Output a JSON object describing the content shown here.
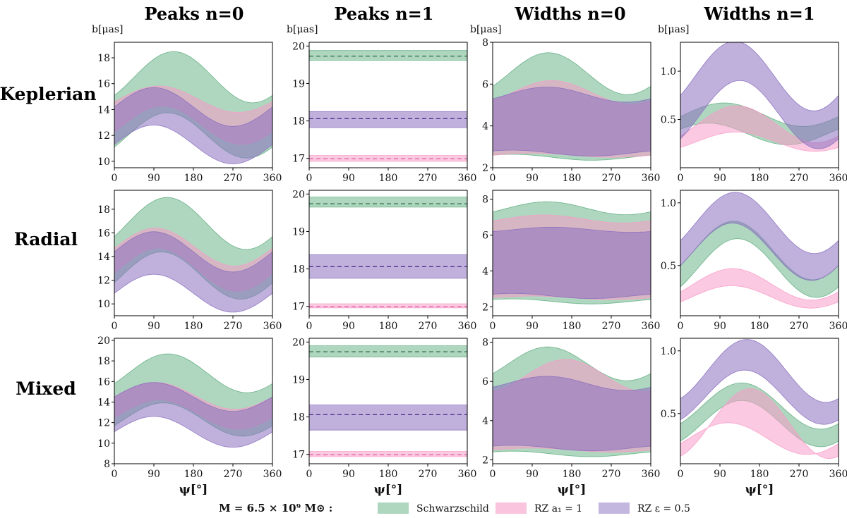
{
  "figure": {
    "column_titles": [
      "Peaks n=0",
      "Peaks n=1",
      "Widths n=0",
      "Widths n=1"
    ],
    "row_labels": [
      "Keplerian",
      "Radial",
      "Mixed"
    ],
    "unit_label": "b[μas]",
    "x_label": "ψ[°]",
    "x_ticks": [
      "0",
      "90",
      "180",
      "270",
      "360"
    ],
    "legend": {
      "mass_label": "M = 6.5 × 10⁹ M⊙ :",
      "entries": [
        {
          "label": "Schwarzschild",
          "color": "#5fae7f"
        },
        {
          "label": "RZ a₁ = 1",
          "color": "#f79cc8"
        },
        {
          "label": "RZ ε = 0.5",
          "color": "#8a6fbf"
        }
      ]
    }
  },
  "chart_data": [
    {
      "type": "area",
      "title": "Peaks n=0",
      "row": "Keplerian",
      "xlabel": "",
      "ylabel": "b[μas]",
      "xlim": [
        0,
        360
      ],
      "ylim": [
        9.5,
        19.2
      ],
      "yticks": [
        10,
        12,
        14,
        16,
        18
      ],
      "series": [
        {
          "name": "Schwarzschild",
          "color": "#5fae7f",
          "lower": {
            "a": 12.0,
            "b": 1.5,
            "c": -0.9
          },
          "upper": {
            "a": 16.5,
            "b": 1.4,
            "c": -1.4
          }
        },
        {
          "name": "RZ a1 = 1",
          "color": "#f79cc8",
          "lower": {
            "a": 12.8,
            "b": 1.4,
            "c": -0.5
          },
          "upper": {
            "a": 14.8,
            "b": 1.0,
            "c": -0.2
          }
        },
        {
          "name": "RZ eps = 0.5",
          "color": "#8a6fbf",
          "lower": {
            "a": 11.3,
            "b": 1.5,
            "c": 0.0
          },
          "upper": {
            "a": 14.2,
            "b": 1.5,
            "c": 0.0
          }
        }
      ]
    },
    {
      "type": "area",
      "title": "Peaks n=1",
      "row": "Keplerian",
      "xlabel": "",
      "ylabel": "b[μas]",
      "xlim": [
        0,
        360
      ],
      "ylim": [
        16.75,
        20.1
      ],
      "yticks": [
        17,
        18,
        19,
        20
      ],
      "series": [
        {
          "name": "Schwarzschild",
          "color": "#5fae7f",
          "lower": {
            "a": 19.62,
            "b": 0.0,
            "c": 0.0
          },
          "upper": {
            "a": 19.88,
            "b": 0.0,
            "c": 0.0
          },
          "mid": 19.73
        },
        {
          "name": "RZ a1 = 1",
          "color": "#f79cc8",
          "lower": {
            "a": 16.92,
            "b": 0.0,
            "c": 0.0
          },
          "upper": {
            "a": 17.08,
            "b": 0.0,
            "c": 0.0
          },
          "mid": 16.99
        },
        {
          "name": "RZ eps = 0.5",
          "color": "#8a6fbf",
          "lower": {
            "a": 17.82,
            "b": 0.0,
            "c": 0.0
          },
          "upper": {
            "a": 18.25,
            "b": 0.0,
            "c": 0.0
          },
          "mid": 18.06
        }
      ]
    },
    {
      "type": "area",
      "title": "Widths n=0",
      "row": "Keplerian",
      "xlabel": "",
      "ylabel": "b[μas]",
      "xlim": [
        0,
        360
      ],
      "ylim": [
        2.0,
        8.0
      ],
      "yticks": [
        2,
        4,
        6,
        8
      ],
      "series": [
        {
          "name": "Schwarzschild",
          "color": "#5fae7f",
          "lower": {
            "a": 2.5,
            "b": 0.1,
            "c": 0.1
          },
          "upper": {
            "a": 6.5,
            "b": 0.8,
            "c": -0.6
          }
        },
        {
          "name": "RZ a1 = 1",
          "color": "#f79cc8",
          "lower": {
            "a": 2.6,
            "b": 0.1,
            "c": 0.0
          },
          "upper": {
            "a": 5.6,
            "b": 0.4,
            "c": -0.4
          }
        },
        {
          "name": "RZ eps = 0.5",
          "color": "#8a6fbf",
          "lower": {
            "a": 2.7,
            "b": 0.1,
            "c": 0.1
          },
          "upper": {
            "a": 5.5,
            "b": 0.3,
            "c": -0.2
          }
        }
      ]
    },
    {
      "type": "area",
      "title": "Widths n=1",
      "row": "Keplerian",
      "xlabel": "",
      "ylabel": "b[μas]",
      "xlim": [
        0,
        360
      ],
      "ylim": [
        0.0,
        1.3
      ],
      "yticks": [
        0.5,
        1.0
      ],
      "series": [
        {
          "name": "Schwarzschild",
          "color": "#5fae7f",
          "lower": {
            "a": 0.35,
            "b": 0.1,
            "c": 0.05
          },
          "upper": {
            "a": 0.55,
            "b": 0.12,
            "c": -0.02
          }
        },
        {
          "name": "RZ a1 = 1",
          "color": "#f79cc8",
          "lower": {
            "a": 0.27,
            "b": 0.08,
            "c": -0.06
          },
          "upper": {
            "a": 0.45,
            "b": 0.15,
            "c": -0.12
          }
        },
        {
          "name": "RZ eps = 0.5",
          "color": "#8a6fbf",
          "lower": {
            "a": 0.55,
            "b": 0.25,
            "c": -0.25
          },
          "upper": {
            "a": 0.95,
            "b": 0.3,
            "c": -0.2
          }
        }
      ]
    },
    {
      "type": "area",
      "title": "Peaks n=0",
      "row": "Radial",
      "xlabel": "",
      "ylabel": "b[μas]",
      "xlim": [
        0,
        360
      ],
      "ylim": [
        9.0,
        19.6
      ],
      "yticks": [
        10,
        12,
        14,
        16,
        18
      ],
      "series": [
        {
          "name": "Schwarzschild",
          "color": "#5fae7f",
          "lower": {
            "a": 12.4,
            "b": 1.9,
            "c": -0.6
          },
          "upper": {
            "a": 16.8,
            "b": 1.9,
            "c": -1.1
          }
        },
        {
          "name": "RZ a1 = 1",
          "color": "#f79cc8",
          "lower": {
            "a": 12.9,
            "b": 1.8,
            "c": -0.3
          },
          "upper": {
            "a": 14.8,
            "b": 1.6,
            "c": -0.1
          }
        },
        {
          "name": "RZ eps = 0.5",
          "color": "#8a6fbf",
          "lower": {
            "a": 10.9,
            "b": 1.6,
            "c": 0.0
          },
          "upper": {
            "a": 14.4,
            "b": 1.7,
            "c": 0.0
          }
        }
      ]
    },
    {
      "type": "area",
      "title": "Peaks n=1",
      "row": "Radial",
      "xlabel": "",
      "ylabel": "b[μas]",
      "xlim": [
        0,
        360
      ],
      "ylim": [
        16.75,
        20.1
      ],
      "yticks": [
        17,
        18,
        19,
        20
      ],
      "series": [
        {
          "name": "Schwarzschild",
          "color": "#5fae7f",
          "lower": {
            "a": 19.65,
            "b": 0.0,
            "c": 0.0
          },
          "upper": {
            "a": 19.92,
            "b": 0.0,
            "c": 0.0
          },
          "mid": 19.74
        },
        {
          "name": "RZ a1 = 1",
          "color": "#f79cc8",
          "lower": {
            "a": 16.96,
            "b": 0.0,
            "c": 0.0
          },
          "upper": {
            "a": 17.07,
            "b": 0.0,
            "c": 0.0
          },
          "mid": 16.99
        },
        {
          "name": "RZ eps = 0.5",
          "color": "#8a6fbf",
          "lower": {
            "a": 17.75,
            "b": 0.0,
            "c": 0.0
          },
          "upper": {
            "a": 18.38,
            "b": 0.0,
            "c": 0.0
          },
          "mid": 18.06
        }
      ]
    },
    {
      "type": "area",
      "title": "Widths n=0",
      "row": "Radial",
      "xlabel": "",
      "ylabel": "b[μas]",
      "xlim": [
        0,
        360
      ],
      "ylim": [
        1.5,
        8.5
      ],
      "yticks": [
        2,
        4,
        6,
        8
      ],
      "series": [
        {
          "name": "Schwarzschild",
          "color": "#5fae7f",
          "lower": {
            "a": 2.3,
            "b": 0.1,
            "c": 0.1
          },
          "upper": {
            "a": 7.5,
            "b": 0.3,
            "c": -0.2
          }
        },
        {
          "name": "RZ a1 = 1",
          "color": "#f79cc8",
          "lower": {
            "a": 2.5,
            "b": 0.1,
            "c": 0.0
          },
          "upper": {
            "a": 6.9,
            "b": 0.2,
            "c": -0.1
          }
        },
        {
          "name": "RZ eps = 0.5",
          "color": "#8a6fbf",
          "lower": {
            "a": 2.6,
            "b": 0.1,
            "c": 0.1
          },
          "upper": {
            "a": 6.3,
            "b": 0.1,
            "c": -0.1
          }
        }
      ]
    },
    {
      "type": "area",
      "title": "Widths n=1",
      "row": "Radial",
      "xlabel": "",
      "ylabel": "b[μas]",
      "xlim": [
        0,
        360
      ],
      "ylim": [
        0.1,
        1.1
      ],
      "yticks": [
        0.5,
        1.0
      ],
      "series": [
        {
          "name": "Schwarzschild",
          "color": "#5fae7f",
          "lower": {
            "a": 0.48,
            "b": 0.18,
            "c": -0.15
          },
          "upper": {
            "a": 0.62,
            "b": 0.2,
            "c": -0.12
          }
        },
        {
          "name": "RZ a1 = 1",
          "color": "#f79cc8",
          "lower": {
            "a": 0.25,
            "b": 0.08,
            "c": -0.04
          },
          "upper": {
            "a": 0.35,
            "b": 0.11,
            "c": -0.06
          }
        },
        {
          "name": "RZ eps = 0.5",
          "color": "#8a6fbf",
          "lower": {
            "a": 0.61,
            "b": 0.2,
            "c": -0.11
          },
          "upper": {
            "a": 0.84,
            "b": 0.2,
            "c": -0.14
          }
        }
      ]
    },
    {
      "type": "area",
      "title": "Peaks n=0",
      "row": "Mixed",
      "xlabel": "ψ[°]",
      "ylabel": "b[μas]",
      "xlim": [
        0,
        360
      ],
      "ylim": [
        8.0,
        20.2
      ],
      "yticks": [
        8,
        10,
        12,
        14,
        16,
        18,
        20
      ],
      "series": [
        {
          "name": "Schwarzschild",
          "color": "#5fae7f",
          "lower": {
            "a": 12.3,
            "b": 1.5,
            "c": -0.6
          },
          "upper": {
            "a": 16.8,
            "b": 1.6,
            "c": -1.0
          }
        },
        {
          "name": "RZ a1 = 1",
          "color": "#f79cc8",
          "lower": {
            "a": 12.8,
            "b": 1.4,
            "c": -0.3
          },
          "upper": {
            "a": 14.6,
            "b": 1.3,
            "c": -0.1
          }
        },
        {
          "name": "RZ eps = 0.5",
          "color": "#8a6fbf",
          "lower": {
            "a": 11.1,
            "b": 1.5,
            "c": 0.0
          },
          "upper": {
            "a": 14.5,
            "b": 1.4,
            "c": 0.0
          }
        }
      ]
    },
    {
      "type": "area",
      "title": "Peaks n=1",
      "row": "Mixed",
      "xlabel": "ψ[°]",
      "ylabel": "b[μas]",
      "xlim": [
        0,
        360
      ],
      "ylim": [
        16.75,
        20.1
      ],
      "yticks": [
        17,
        18,
        19,
        20
      ],
      "series": [
        {
          "name": "Schwarzschild",
          "color": "#5fae7f",
          "lower": {
            "a": 19.6,
            "b": 0.0,
            "c": 0.0
          },
          "upper": {
            "a": 19.9,
            "b": 0.0,
            "c": 0.0
          },
          "mid": 19.74
        },
        {
          "name": "RZ a1 = 1",
          "color": "#f79cc8",
          "lower": {
            "a": 16.94,
            "b": 0.0,
            "c": 0.0
          },
          "upper": {
            "a": 17.08,
            "b": 0.0,
            "c": 0.0
          },
          "mid": 16.99
        },
        {
          "name": "RZ eps = 0.5",
          "color": "#8a6fbf",
          "lower": {
            "a": 17.65,
            "b": 0.0,
            "c": 0.0
          },
          "upper": {
            "a": 18.32,
            "b": 0.0,
            "c": 0.0
          },
          "mid": 18.06
        }
      ]
    },
    {
      "type": "area",
      "title": "Widths n=0",
      "row": "Mixed",
      "xlabel": "ψ[°]",
      "ylabel": "b[μas]",
      "xlim": [
        0,
        360
      ],
      "ylim": [
        1.8,
        8.2
      ],
      "yticks": [
        2,
        4,
        6,
        8
      ],
      "series": [
        {
          "name": "Schwarzschild",
          "color": "#5fae7f",
          "lower": {
            "a": 2.3,
            "b": 0.1,
            "c": 0.1
          },
          "upper": {
            "a": 6.9,
            "b": 0.7,
            "c": -0.5
          }
        },
        {
          "name": "RZ a1 = 1",
          "color": "#f79cc8",
          "lower": {
            "a": 2.5,
            "b": 0.1,
            "c": 0.0
          },
          "upper": {
            "a": 6.3,
            "b": 0.2,
            "c": -0.8
          }
        },
        {
          "name": "RZ eps = 0.5",
          "color": "#8a6fbf",
          "lower": {
            "a": 2.6,
            "b": 0.1,
            "c": 0.1
          },
          "upper": {
            "a": 5.9,
            "b": 0.3,
            "c": -0.2
          }
        }
      ]
    },
    {
      "type": "area",
      "title": "Widths n=1",
      "row": "Mixed",
      "xlabel": "ψ[°]",
      "ylabel": "b[μas]",
      "xlim": [
        0,
        360
      ],
      "ylim": [
        0.1,
        1.1
      ],
      "yticks": [
        0.5,
        1.0
      ],
      "series": [
        {
          "name": "Schwarzschild",
          "color": "#5fae7f",
          "lower": {
            "a": 0.42,
            "b": 0.12,
            "c": -0.14
          },
          "upper": {
            "a": 0.56,
            "b": 0.12,
            "c": -0.14
          }
        },
        {
          "name": "RZ a1 = 1",
          "color": "#f79cc8",
          "lower": {
            "a": 0.3,
            "b": 0.12,
            "c": -0.04
          },
          "upper": {
            "a": 0.42,
            "b": 0.1,
            "c": -0.26
          }
        },
        {
          "name": "RZ eps = 0.5",
          "color": "#8a6fbf",
          "lower": {
            "a": 0.63,
            "b": 0.12,
            "c": -0.18
          },
          "upper": {
            "a": 0.84,
            "b": 0.12,
            "c": -0.22
          }
        }
      ]
    }
  ]
}
